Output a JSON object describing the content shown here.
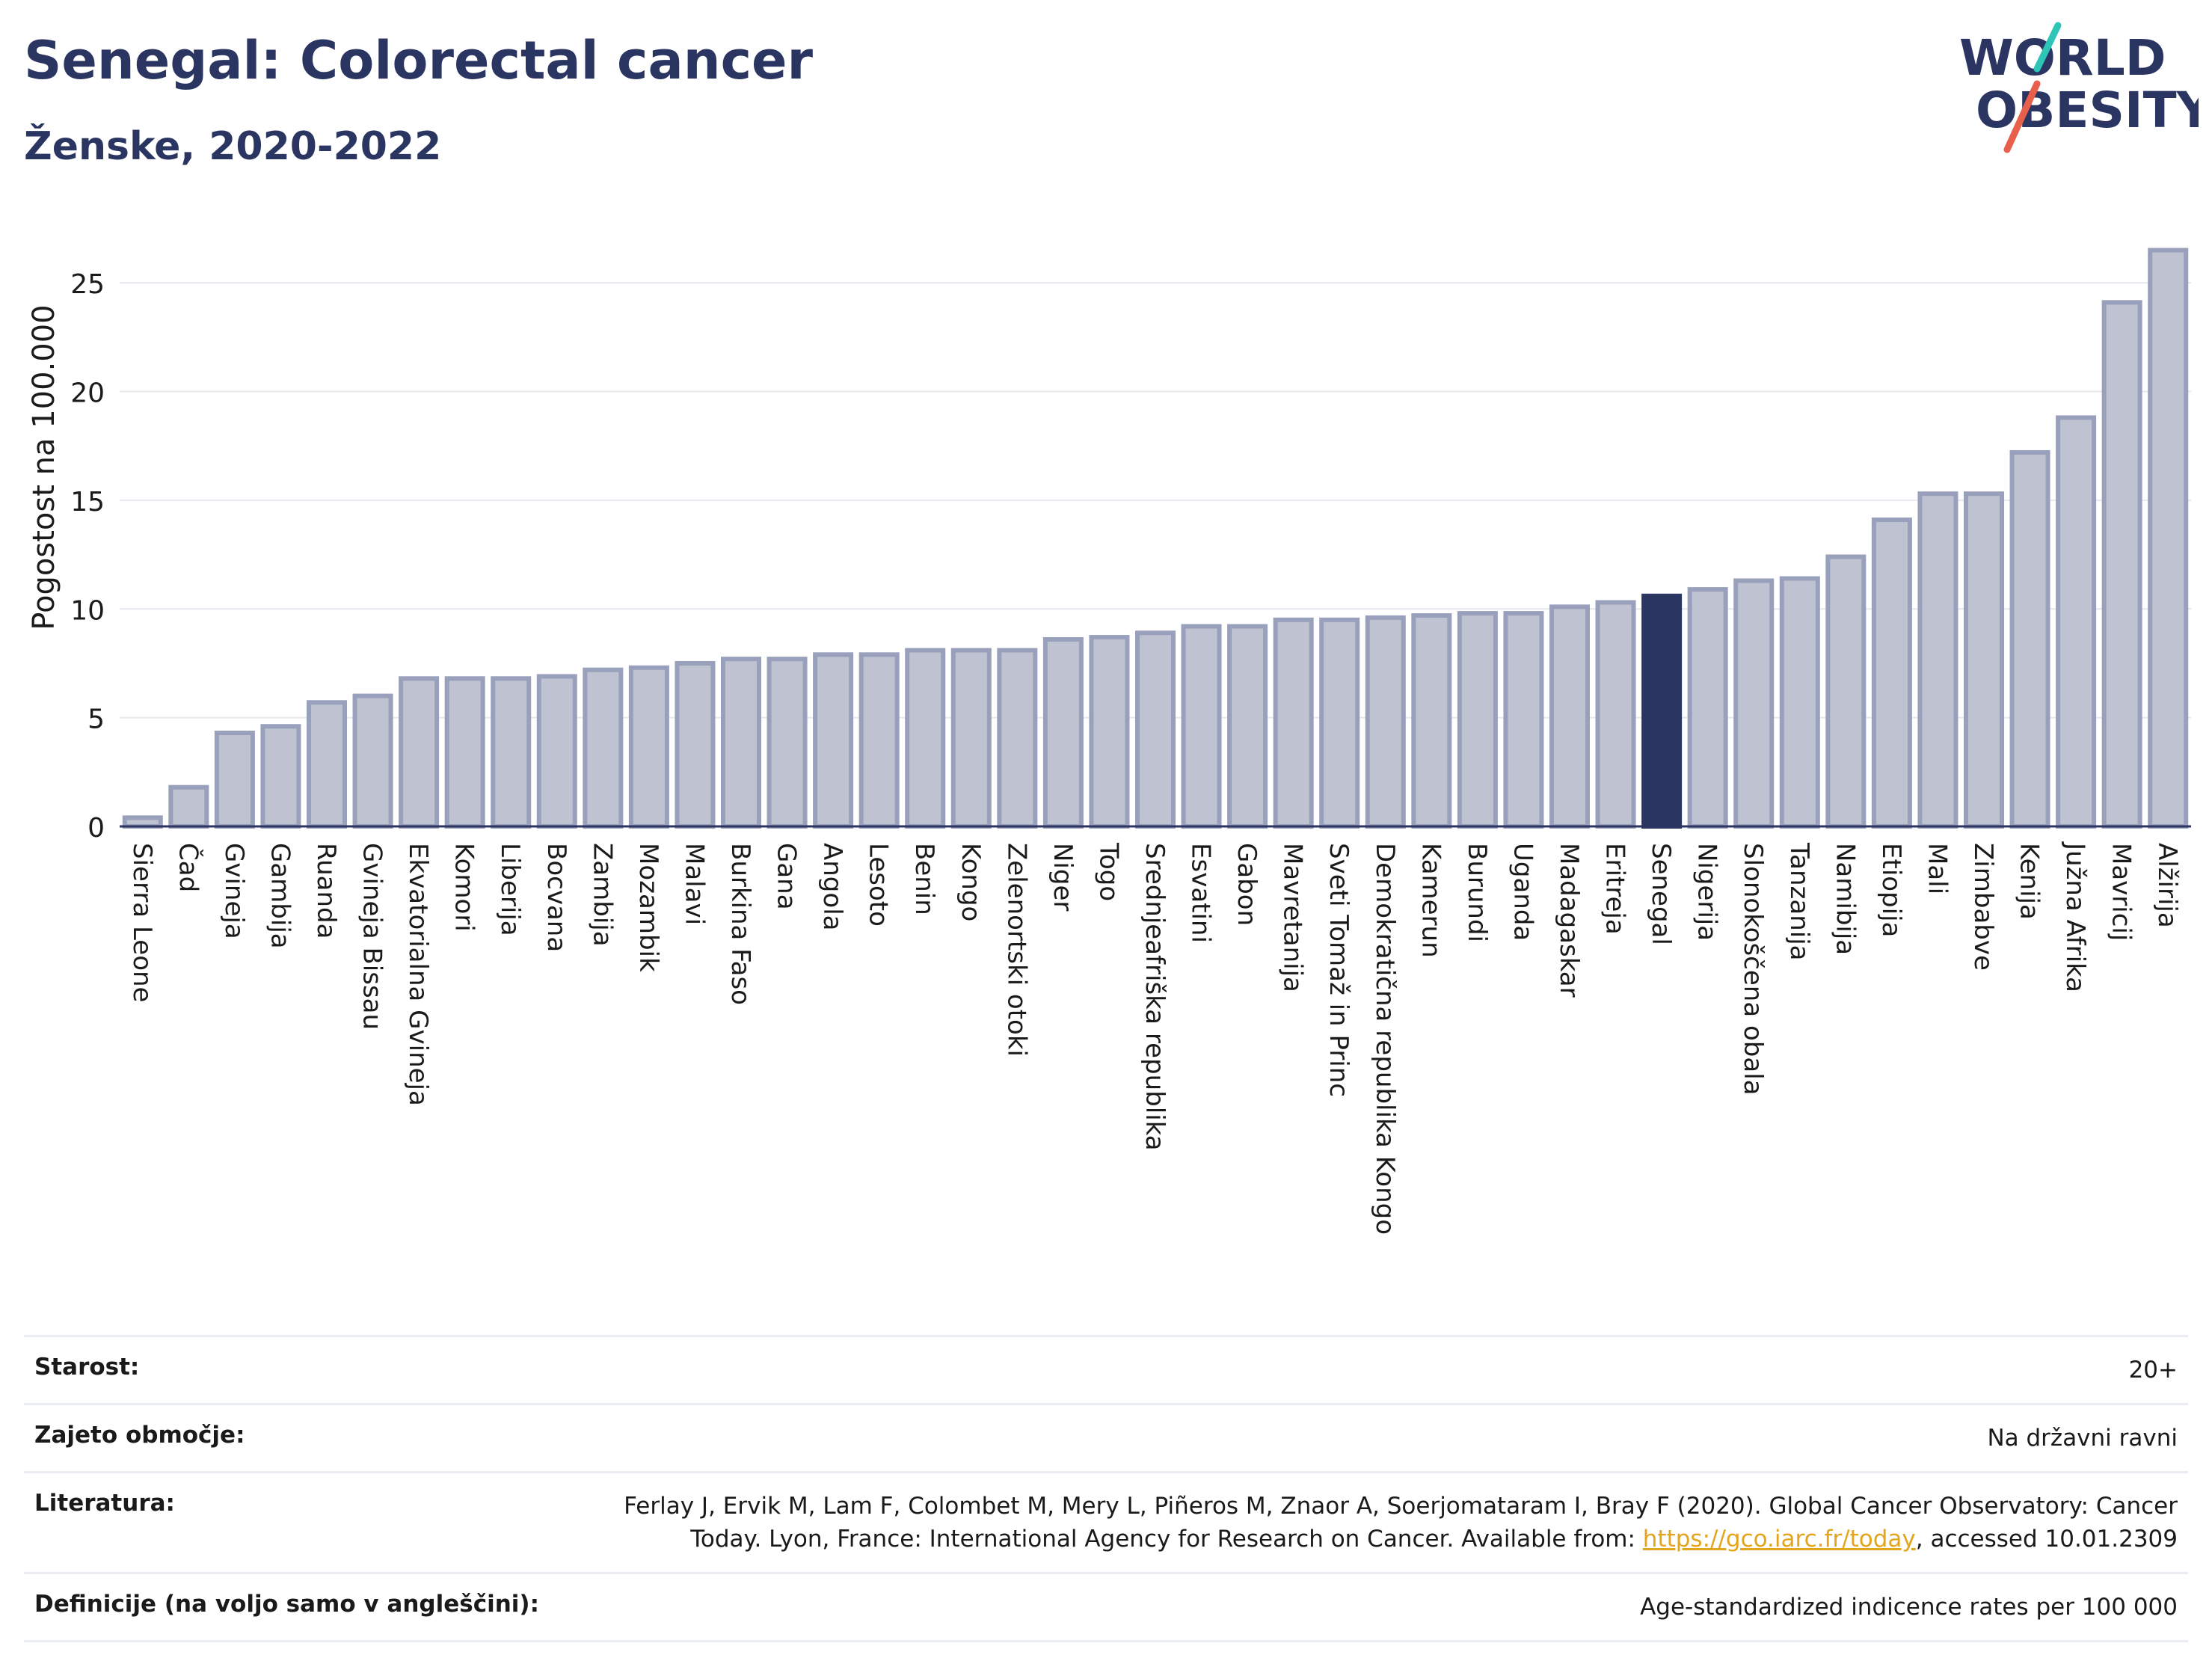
{
  "title": "Senegal: Colorectal cancer",
  "subtitle": "Ženske, 2020-2022",
  "logo": {
    "line1": "WORLD",
    "line2": "OBESITY",
    "accent_teal": "#2ec4b6",
    "accent_red": "#e8604c",
    "text_color": "#2b3562"
  },
  "colors": {
    "bar": "#bfc3d1",
    "bar_stroke": "#98a0bb",
    "highlight": "#2b3562",
    "grid": "#e6e8ee",
    "axis": "#2b3562"
  },
  "chart_data": {
    "type": "bar",
    "title": "Senegal: Colorectal cancer",
    "subtitle": "Ženske, 2020-2022",
    "ylabel": "Pogostost na 100.000",
    "xlabel": "",
    "ylim": [
      0,
      27
    ],
    "yticks": [
      0,
      5,
      10,
      15,
      20,
      25
    ],
    "grid": true,
    "highlight": "Senegal",
    "categories": [
      "Sierra Leone",
      "Čad",
      "Gvineja",
      "Gambija",
      "Ruanda",
      "Gvineja Bissau",
      "Ekvatorialna Gvineja",
      "Komori",
      "Liberija",
      "Bocvana",
      "Zambija",
      "Mozambik",
      "Malavi",
      "Burkina Faso",
      "Gana",
      "Angola",
      "Lesoto",
      "Benin",
      "Kongo",
      "Zelenortski otoki",
      "Niger",
      "Togo",
      "Srednjeafriška republika",
      "Esvatini",
      "Gabon",
      "Mavretanija",
      "Sveti Tomaž in Princ",
      "Demokratična republika Kongo",
      "Kamerun",
      "Burundi",
      "Uganda",
      "Madagaskar",
      "Eritreja",
      "Senegal",
      "Nigerija",
      "Slonokoščena obala",
      "Tanzanija",
      "Namibija",
      "Etiopija",
      "Mali",
      "Zimbabve",
      "Kenija",
      "Južna Afrika",
      "Mavricij",
      "Alžirija"
    ],
    "values": [
      0.4,
      1.8,
      4.3,
      4.6,
      5.7,
      6.0,
      6.8,
      6.8,
      6.8,
      6.9,
      7.2,
      7.3,
      7.5,
      7.7,
      7.7,
      7.9,
      7.9,
      8.1,
      8.1,
      8.1,
      8.6,
      8.7,
      8.9,
      9.2,
      9.2,
      9.5,
      9.5,
      9.6,
      9.7,
      9.8,
      9.8,
      10.1,
      10.3,
      10.6,
      10.9,
      11.3,
      11.4,
      12.4,
      14.1,
      15.3,
      15.3,
      17.2,
      18.8,
      24.1,
      26.5
    ]
  },
  "info": {
    "age_label": "Starost:",
    "age_value": "20+",
    "area_label": "Zajeto območje:",
    "area_value": "Na državni ravni",
    "ref_label": "Literatura:",
    "ref_text_1": "Ferlay J, Ervik M, Lam F, Colombet M, Mery L, Piñeros M, Znaor A, Soerjomataram I, Bray F (2020). Global Cancer Observatory: Cancer Today. Lyon, France: International Agency for Research on Cancer. Available from: ",
    "ref_link": "https://gco.iarc.fr/today",
    "ref_text_2": ", accessed 10.01.2309",
    "def_label": "Definicije (na voljo samo v angleščini):",
    "def_value": "Age-standardized indicence rates per 100 000"
  }
}
